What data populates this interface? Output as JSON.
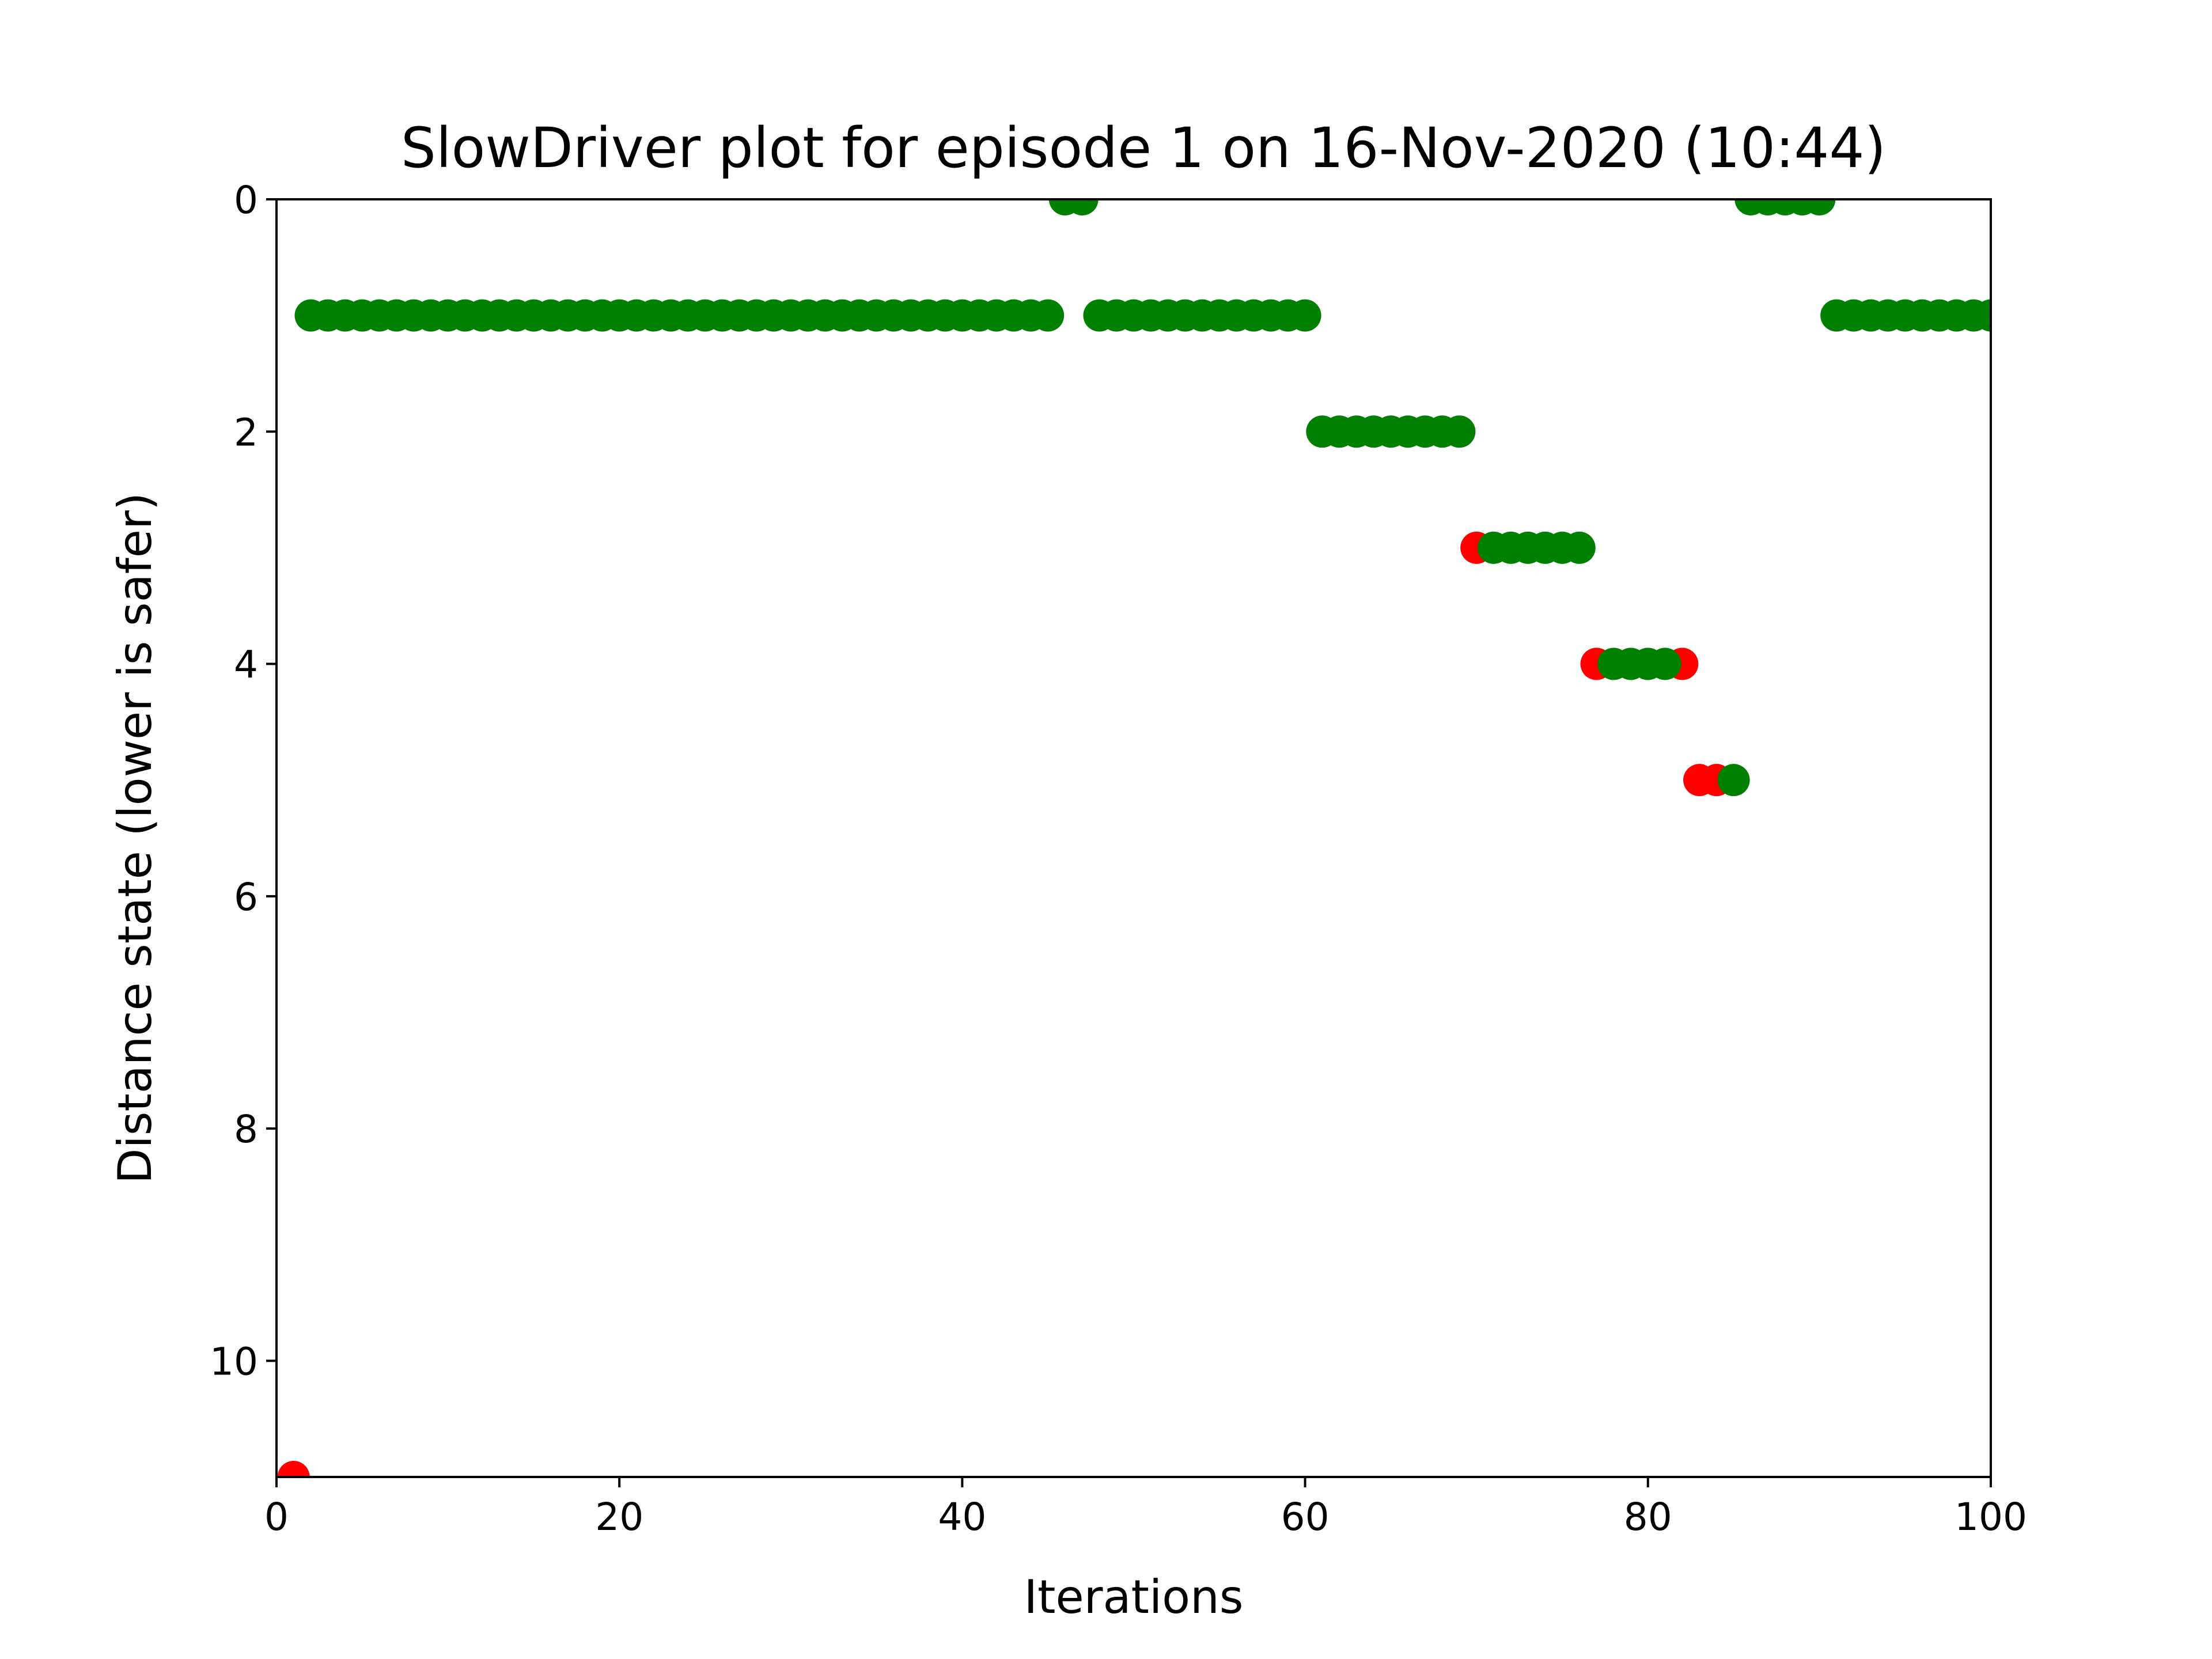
{
  "chart_data": {
    "type": "scatter",
    "title": "SlowDriver plot for episode 1 on 16-Nov-2020 (10:44)",
    "xlabel": "Iterations",
    "ylabel": "Distance state (lower is safer)",
    "xlim": [
      0,
      100
    ],
    "ylim": [
      11,
      0
    ],
    "y_inverted": true,
    "xticks": [
      0,
      20,
      40,
      60,
      80,
      100
    ],
    "yticks": [
      0,
      2,
      4,
      6,
      8,
      10
    ],
    "grid": false,
    "colors": {
      "safe": "#008000",
      "unsafe": "#ff0000"
    },
    "series": [
      {
        "color": "#ff0000",
        "x": [
          1,
          70,
          77,
          82,
          83,
          84
        ],
        "y": [
          11,
          3,
          4,
          4,
          5,
          5
        ]
      },
      {
        "color": "#008000",
        "x": [
          2,
          3,
          4,
          5,
          6,
          7,
          8,
          9,
          10,
          11,
          12,
          13,
          14,
          15,
          16,
          17,
          18,
          19,
          20,
          21,
          22,
          23,
          24,
          25,
          26,
          27,
          28,
          29,
          30,
          31,
          32,
          33,
          34,
          35,
          36,
          37,
          38,
          39,
          40,
          41,
          42,
          43,
          44,
          45,
          46,
          47,
          48,
          49,
          50,
          51,
          52,
          53,
          54,
          55,
          56,
          57,
          58,
          59,
          60,
          61,
          62,
          63,
          64,
          65,
          66,
          67,
          68,
          69,
          71,
          72,
          73,
          74,
          75,
          76,
          78,
          79,
          80,
          81,
          85,
          86,
          87,
          88,
          89,
          90,
          91,
          92,
          93,
          94,
          95,
          96,
          97,
          98,
          99,
          100
        ],
        "y": [
          1,
          1,
          1,
          1,
          1,
          1,
          1,
          1,
          1,
          1,
          1,
          1,
          1,
          1,
          1,
          1,
          1,
          1,
          1,
          1,
          1,
          1,
          1,
          1,
          1,
          1,
          1,
          1,
          1,
          1,
          1,
          1,
          1,
          1,
          1,
          1,
          1,
          1,
          1,
          1,
          1,
          1,
          1,
          1,
          0,
          0,
          1,
          1,
          1,
          1,
          1,
          1,
          1,
          1,
          1,
          1,
          1,
          1,
          1,
          2,
          2,
          2,
          2,
          2,
          2,
          2,
          2,
          2,
          3,
          3,
          3,
          3,
          3,
          3,
          4,
          4,
          4,
          4,
          5,
          0,
          0,
          0,
          0,
          0,
          1,
          1,
          1,
          1,
          1,
          1,
          1,
          1,
          1,
          1
        ]
      }
    ]
  }
}
